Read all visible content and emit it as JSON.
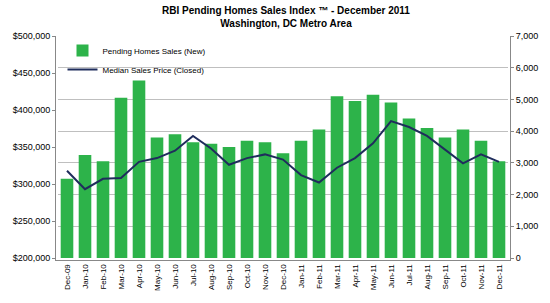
{
  "chart_data": {
    "type": "bar",
    "title": "RBI Pending Homes Sales Index ™ - December 2011",
    "subtitle": "Washington, DC Metro Area",
    "categories": [
      "Dec-09",
      "Jan-10",
      "Feb-10",
      "Mar-10",
      "Apr-10",
      "May-10",
      "Jun-10",
      "Jul-10",
      "Aug-10",
      "Sep-10",
      "Oct-10",
      "Nov-10",
      "Dec-10",
      "Jan-11",
      "Feb-11",
      "Mar-11",
      "Apr-11",
      "May-11",
      "Jun-11",
      "Jul-11",
      "Aug-11",
      "Sep-11",
      "Oct-11",
      "Nov-11",
      "Dec-11"
    ],
    "series": [
      {
        "name": "Pending Homes Sales (New)",
        "type": "bar",
        "color": "#2db34a",
        "axis": "y2",
        "values": [
          2500,
          3250,
          3050,
          5050,
          5600,
          3800,
          3900,
          3650,
          3600,
          3500,
          3700,
          3650,
          3300,
          3700,
          4050,
          5100,
          4950,
          5150,
          4900,
          4400,
          4100,
          3800,
          4050,
          3700,
          3050
        ]
      },
      {
        "name": "Median Sales Price (Closed)",
        "type": "line",
        "color": "#1f2d5c",
        "values": [
          318000,
          293000,
          307000,
          308000,
          330000,
          335000,
          345000,
          365000,
          348000,
          326000,
          335000,
          340000,
          333000,
          312000,
          302000,
          322000,
          335000,
          355000,
          385000,
          377000,
          365000,
          347000,
          328000,
          340000,
          330000
        ]
      }
    ],
    "ylim": [
      200000,
      500000
    ],
    "yticks": [
      {
        "value": 200000,
        "label": "$200,000"
      },
      {
        "value": 250000,
        "label": "$250,000"
      },
      {
        "value": 300000,
        "label": "$300,000"
      },
      {
        "value": 350000,
        "label": "$350,000"
      },
      {
        "value": 400000,
        "label": "$400,000"
      },
      {
        "value": 450000,
        "label": "$450,000"
      },
      {
        "value": 500000,
        "label": "$500,000"
      }
    ],
    "y2lim": [
      0,
      7000
    ],
    "y2ticks": [
      0,
      {
        "value": 1000,
        "label": "1,000"
      },
      {
        "value": 2000,
        "label": "2,000"
      },
      {
        "value": 3000,
        "label": "3,000"
      },
      {
        "value": 4000,
        "label": "4,000"
      },
      {
        "value": 5000,
        "label": "5,000"
      },
      {
        "value": 6000,
        "label": "6,000"
      },
      {
        "value": 7000,
        "label": "7,000"
      }
    ],
    "grid": true,
    "legend": "top left"
  }
}
